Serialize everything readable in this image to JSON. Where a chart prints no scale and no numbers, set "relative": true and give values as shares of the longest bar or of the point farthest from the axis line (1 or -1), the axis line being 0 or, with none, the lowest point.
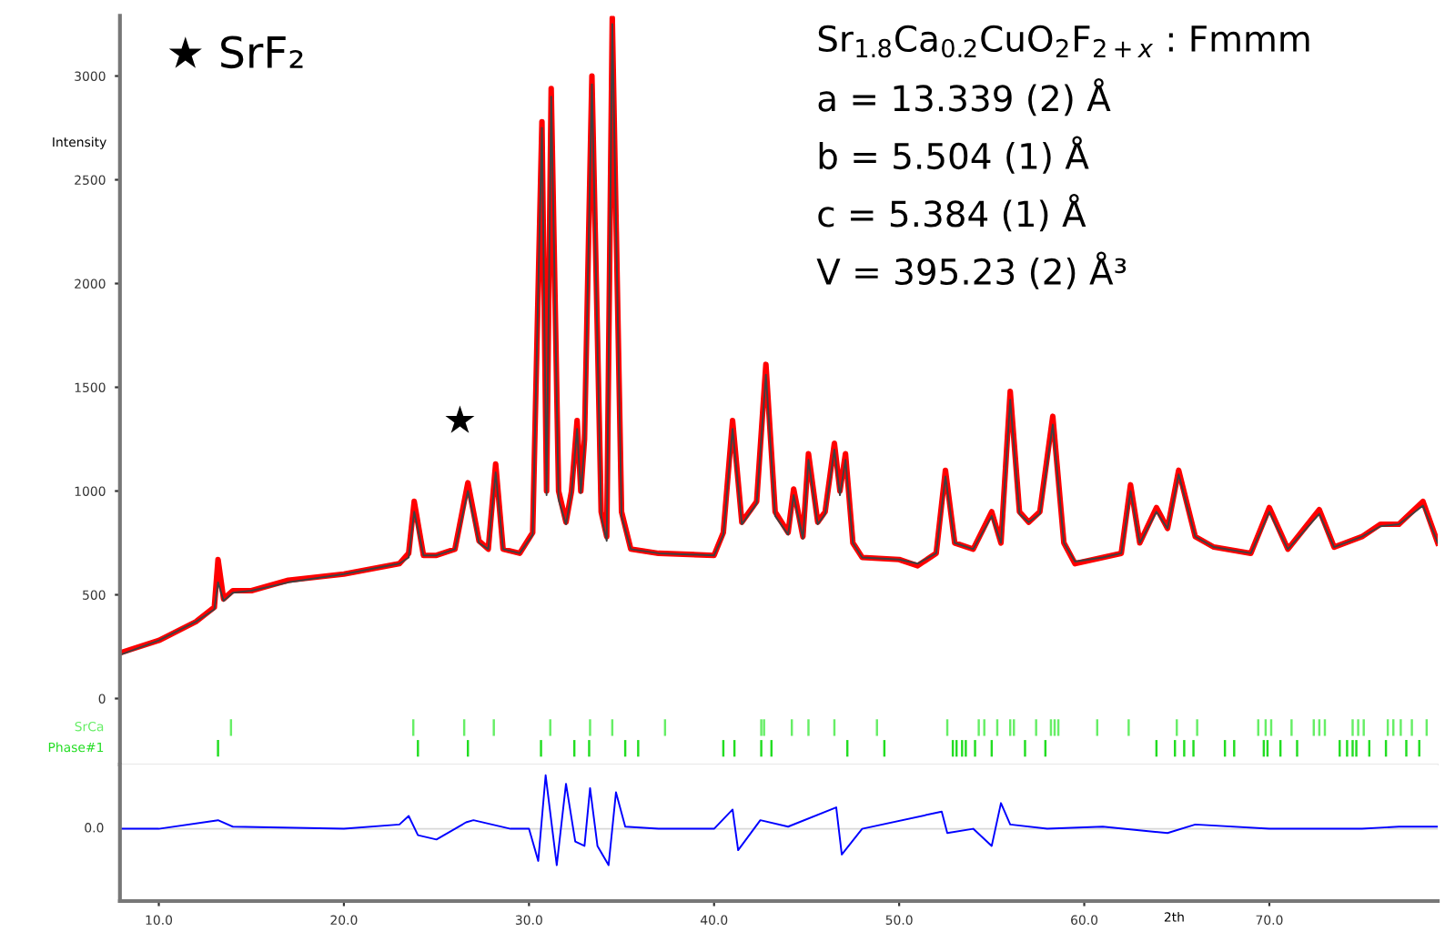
{
  "chart_data": [
    {
      "type": "line",
      "ylabel": "Intensity",
      "tick_labels": "y",
      "x": [
        7.9,
        10,
        12,
        13,
        13.2,
        13.5,
        14,
        15,
        17,
        20,
        23,
        23.5,
        23.8,
        24.3,
        25,
        26,
        26.7,
        27.3,
        27.8,
        28.2,
        28.6,
        29.5,
        30.2,
        30.7,
        30.95,
        31.2,
        31.6,
        32.0,
        32.3,
        32.6,
        32.8,
        33.0,
        33.4,
        33.9,
        34.2,
        34.5,
        35.0,
        35.5,
        37,
        40,
        40.5,
        41.0,
        41.5,
        42.3,
        42.8,
        43.3,
        44,
        44.3,
        44.8,
        45.1,
        45.6,
        46.0,
        46.5,
        46.8,
        47.1,
        47.5,
        48,
        50,
        51,
        52,
        52.5,
        53.0,
        54,
        55,
        55.5,
        56.0,
        56.5,
        57,
        57.6,
        58.3,
        58.9,
        59.5,
        61,
        62,
        62.5,
        63,
        63.9,
        64.5,
        65.1,
        66,
        67,
        69,
        70,
        71,
        72.7,
        73.5,
        75,
        76,
        77,
        78.3,
        79.1
      ],
      "series": [
        {
          "color": "#ff0000",
          "values": [
            220,
            280,
            370,
            440,
            670,
            480,
            520,
            520,
            570,
            600,
            650,
            700,
            950,
            690,
            690,
            720,
            1040,
            760,
            720,
            1130,
            720,
            700,
            800,
            2780,
            1000,
            2940,
            1000,
            850,
            1000,
            1340,
            1000,
            1250,
            3000,
            900,
            780,
            3280,
            900,
            720,
            700,
            690,
            800,
            1340,
            850,
            950,
            1610,
            900,
            800,
            1010,
            780,
            1180,
            850,
            900,
            1230,
            1000,
            1180,
            750,
            680,
            670,
            640,
            700,
            1100,
            750,
            720,
            900,
            750,
            1480,
            900,
            850,
            900,
            1360,
            750,
            650,
            680,
            700,
            1030,
            750,
            920,
            820,
            1100,
            780,
            730,
            700,
            920,
            720,
            910,
            730,
            780,
            840,
            840,
            950,
            750
          ]
        },
        {
          "color": "#404040",
          "values": [
            210,
            280,
            370,
            430,
            560,
            470,
            510,
            520,
            560,
            600,
            650,
            680,
            900,
            690,
            690,
            720,
            1000,
            750,
            720,
            1090,
            720,
            700,
            790,
            2750,
            980,
            2900,
            960,
            840,
            990,
            1300,
            990,
            1220,
            2960,
            880,
            760,
            3250,
            880,
            720,
            700,
            690,
            790,
            1300,
            840,
            940,
            1560,
            880,
            790,
            980,
            770,
            1150,
            840,
            890,
            1200,
            980,
            1150,
            750,
            680,
            670,
            650,
            700,
            1070,
            750,
            720,
            880,
            750,
            1440,
            890,
            850,
            890,
            1320,
            750,
            660,
            680,
            700,
            1000,
            750,
            900,
            820,
            1080,
            780,
            730,
            700,
            900,
            720,
            890,
            730,
            780,
            830,
            840,
            930,
            750
          ]
        },
        {
          "type": "bar",
          "name": "SrCa",
          "color": "#66ee66",
          "x": [
            13.9,
            23.75,
            26.5,
            28.1,
            31.15,
            33.3,
            34.5,
            37.35,
            42.55,
            42.7,
            44.2,
            45.1,
            46.5,
            48.8,
            52.6,
            54.3,
            54.6,
            55.3,
            56.0,
            56.2,
            57.4,
            58.2,
            58.4,
            58.6,
            60.7,
            62.4,
            65.0,
            66.1,
            69.4,
            69.8,
            70.1,
            71.2,
            72.4,
            72.7,
            73.0,
            74.5,
            74.8,
            75.1,
            76.4,
            76.7,
            77.1,
            77.7,
            78.5
          ],
          "values": [
            80,
            80,
            80,
            80,
            80,
            80,
            80,
            80,
            80,
            80,
            80,
            80,
            80,
            80,
            80,
            80,
            80,
            80,
            80,
            80,
            80,
            80,
            80,
            80,
            80,
            80,
            80,
            80,
            80,
            80,
            80,
            80,
            80,
            80,
            80,
            80,
            80,
            80,
            80,
            80,
            80,
            80,
            80
          ],
          "base": [
            -180,
            -180,
            -180,
            -180,
            -180,
            -180,
            -180,
            -180,
            -180,
            -180,
            -180,
            -180,
            -180,
            -180,
            -180,
            -180,
            -180,
            -180,
            -180,
            -180,
            -180,
            -180,
            -180,
            -180,
            -180,
            -180,
            -180,
            -180,
            -180,
            -180,
            -180,
            -180,
            -180,
            -180,
            -180,
            -180,
            -180,
            -180,
            -180,
            -180,
            -180,
            -180,
            -180
          ]
        },
        {
          "type": "bar",
          "name": "Phase#1",
          "color": "#22dd22",
          "x": [
            13.2,
            24.0,
            26.7,
            30.65,
            32.45,
            33.25,
            35.2,
            35.9,
            40.5,
            41.1,
            42.55,
            43.1,
            47.2,
            49.2,
            52.9,
            53.1,
            53.4,
            53.6,
            54.1,
            55.0,
            56.8,
            57.9,
            63.9,
            64.9,
            65.4,
            65.9,
            67.6,
            68.1,
            69.7,
            69.9,
            70.6,
            71.5,
            73.8,
            74.2,
            74.5,
            74.7,
            75.4,
            76.3,
            77.4,
            78.1
          ],
          "values": [
            80,
            80,
            80,
            80,
            80,
            80,
            80,
            80,
            80,
            80,
            80,
            80,
            80,
            80,
            80,
            80,
            80,
            80,
            80,
            80,
            80,
            80,
            80,
            80,
            80,
            80,
            80,
            80,
            80,
            80,
            80,
            80,
            80,
            80,
            80,
            80,
            80,
            80,
            80,
            80
          ],
          "base": [
            -280,
            -280,
            -280,
            -280,
            -280,
            -280,
            -280,
            -280,
            -280,
            -280,
            -280,
            -280,
            -280,
            -280,
            -280,
            -280,
            -280,
            -280,
            -280,
            -280,
            -280,
            -280,
            -280,
            -280,
            -280,
            -280,
            -280,
            -280,
            -280,
            -280,
            -280,
            -280,
            -280,
            -280,
            -280,
            -280,
            -280,
            -280,
            -280,
            -280
          ]
        }
      ],
      "xlim": [
        7.9,
        79.1
      ],
      "ylim": [
        -318,
        3290
      ],
      "yticks": [
        0,
        500,
        1000,
        1500,
        2000,
        2500,
        3000
      ],
      "annotations": [
        "★ SrF₂",
        "★",
        "Sr$_{1.8}$Ca$_{0.2}$CuO$_{2}$F$_{2+x}$ : Fmmm",
        "a = 13.339 (2) Å",
        "b = 5.504 (1) Å",
        "c = 5.384 (1) Å",
        "V = 395.23 (2) Å³"
      ],
      "grid": false,
      "legend": false
    },
    {
      "type": "line",
      "relative": true,
      "xlabel": "2th",
      "tick_labels": "x",
      "x": [
        7.9,
        10,
        13.2,
        14,
        20,
        23,
        23.5,
        24,
        25,
        26.6,
        27,
        28,
        29,
        30,
        30.5,
        30.9,
        31.5,
        32.0,
        32.5,
        33.0,
        33.3,
        33.7,
        34.3,
        34.7,
        35.2,
        37,
        40,
        41.0,
        41.3,
        42.5,
        44,
        46.6,
        46.9,
        48,
        52.3,
        52.6,
        54,
        55.0,
        55.5,
        56,
        58,
        61,
        64.5,
        66,
        70,
        75,
        77,
        79.1
      ],
      "series": [
        {
          "color": "#0000ff",
          "values": [
            0,
            0,
            0.16,
            0.04,
            0,
            0.08,
            0.24,
            -0.12,
            -0.2,
            0.12,
            0.16,
            0.08,
            0,
            0,
            -0.6,
            1,
            -0.68,
            0.84,
            -0.24,
            -0.32,
            0.76,
            -0.32,
            -0.68,
            0.68,
            0.04,
            0,
            0,
            0.36,
            -0.4,
            0.16,
            0.04,
            0.4,
            -0.48,
            0,
            0.32,
            -0.08,
            0,
            -0.32,
            0.48,
            0.08,
            0,
            0.04,
            -0.08,
            0.08,
            0,
            0,
            0.04,
            0.04
          ]
        }
      ],
      "xlim": [
        7.9,
        79.1
      ],
      "xticks": [
        {
          "value": 10,
          "label": "10.0"
        },
        {
          "value": 20,
          "label": "20.0"
        },
        {
          "value": 30,
          "label": "30.0"
        },
        {
          "value": 40,
          "label": "40.0"
        },
        {
          "value": 50,
          "label": "50.0"
        },
        {
          "value": 60,
          "label": "60.0"
        },
        {
          "value": 70,
          "label": "70.0"
        }
      ],
      "ref_lines": [
        {
          "axis": "y",
          "value": 0,
          "label": "0.0",
          "color": "#d8d8d8"
        }
      ],
      "grid": false,
      "legend": false
    }
  ]
}
